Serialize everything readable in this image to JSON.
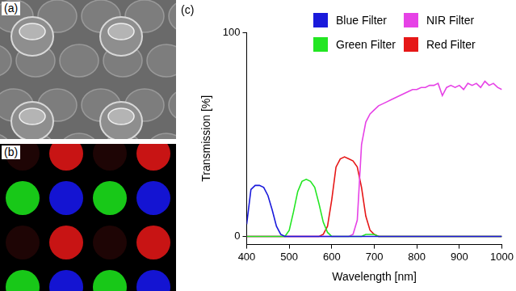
{
  "panel_labels": [
    "(a)",
    "(b)",
    "(c)"
  ],
  "chart_data": {
    "type": "line",
    "x_label": "Wavelength [nm]",
    "y_label": "Transmission [%]",
    "xlim": [
      400,
      1000
    ],
    "xticks": [
      400,
      500,
      600,
      700,
      800,
      900,
      1000
    ],
    "ylim": [
      -4,
      100
    ],
    "yticks": [
      0,
      100
    ],
    "grid": false,
    "legend": "top",
    "x": [
      400,
      410,
      420,
      430,
      440,
      450,
      460,
      470,
      480,
      490,
      500,
      510,
      520,
      530,
      540,
      550,
      560,
      570,
      580,
      590,
      600,
      610,
      620,
      630,
      640,
      650,
      660,
      670,
      680,
      690,
      700,
      710,
      720,
      730,
      740,
      750,
      760,
      770,
      780,
      790,
      800,
      810,
      820,
      830,
      840,
      850,
      860,
      870,
      880,
      890,
      900,
      910,
      920,
      930,
      940,
      950,
      960,
      970,
      980,
      990,
      1000
    ],
    "series": [
      {
        "name": "Blue Filter",
        "color": "#1a1adb",
        "values": [
          6,
          23,
          25,
          25,
          24,
          20,
          13,
          5,
          1,
          0,
          0,
          0,
          0,
          0,
          0,
          0,
          0,
          0,
          0,
          0,
          0,
          0,
          0,
          0,
          0,
          0,
          0,
          0,
          0,
          0,
          0,
          0,
          0,
          0,
          0,
          0,
          0,
          0,
          0,
          0,
          0,
          0,
          0,
          0,
          0,
          0,
          0,
          0,
          0,
          0,
          0,
          0,
          0,
          0,
          0,
          0,
          0,
          0,
          0,
          0,
          0
        ]
      },
      {
        "name": "Green Filter",
        "color": "#22e622",
        "values": [
          0,
          0,
          0,
          0,
          0,
          0,
          0,
          0,
          0,
          0,
          3,
          12,
          22,
          27,
          28,
          27,
          24,
          16,
          7,
          2,
          0,
          0,
          0,
          0,
          0,
          0,
          0,
          0,
          1,
          1,
          1,
          0,
          0,
          0,
          0,
          0,
          0,
          0,
          0,
          0,
          0,
          0,
          0,
          0,
          0,
          0,
          0,
          0,
          0,
          0,
          0,
          0,
          0,
          0,
          0,
          0,
          0,
          0,
          0,
          0,
          0
        ]
      },
      {
        "name": "NIR Filter",
        "color": "#e642e6",
        "values": [
          0,
          0,
          0,
          0,
          0,
          0,
          0,
          0,
          0,
          0,
          0,
          0,
          0,
          0,
          0,
          0,
          0,
          0,
          0,
          0,
          0,
          0,
          0,
          0,
          0,
          1,
          8,
          45,
          56,
          60,
          62,
          64,
          65,
          66,
          67,
          68,
          69,
          70,
          71,
          72,
          72,
          73,
          73,
          74,
          74,
          75,
          69,
          73,
          74,
          73,
          74,
          72,
          75,
          74,
          75,
          73,
          76,
          74,
          75,
          73,
          72
        ]
      },
      {
        "name": "Red Filter",
        "color": "#e61717",
        "values": [
          0,
          0,
          0,
          0,
          0,
          0,
          0,
          0,
          0,
          0,
          0,
          0,
          0,
          0,
          0,
          0,
          0,
          0,
          1,
          5,
          18,
          34,
          38,
          39,
          38,
          37,
          34,
          24,
          10,
          3,
          1,
          0,
          0,
          0,
          0,
          0,
          0,
          0,
          0,
          0,
          0,
          0,
          0,
          0,
          0,
          0,
          0,
          0,
          0,
          0,
          0,
          0,
          0,
          0,
          0,
          0,
          0,
          0,
          0,
          0,
          0
        ]
      }
    ]
  }
}
